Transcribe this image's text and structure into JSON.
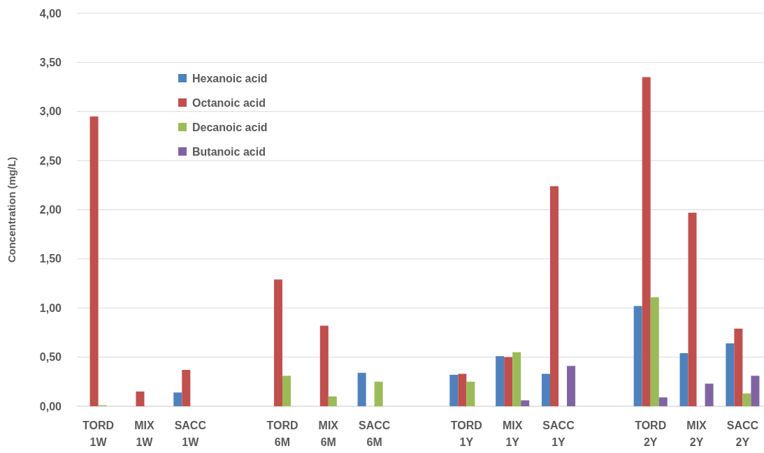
{
  "chart_data": {
    "type": "bar",
    "ylabel": "Concentration (mg/L)",
    "categories": [
      "TORD 1W",
      "MIX 1W",
      "SACC 1W",
      null,
      "TORD 6M",
      "MIX 6M",
      "SACC 6M",
      null,
      "TORD 1Y",
      "MIX 1Y",
      "SACC 1Y",
      null,
      "TORD 2Y",
      "MIX 2Y",
      "SACC 2Y"
    ],
    "series": [
      {
        "name": "Hexanoic acid",
        "color": "#4f81bd",
        "values": [
          0,
          0,
          0.14,
          null,
          0,
          0,
          0.34,
          null,
          0.32,
          0.51,
          0.33,
          null,
          1.02,
          0.54,
          0.64
        ]
      },
      {
        "name": "Octanoic acid",
        "color": "#c0504d",
        "values": [
          2.95,
          0.15,
          0.37,
          null,
          1.29,
          0.82,
          0,
          null,
          0.33,
          0.5,
          2.24,
          null,
          3.35,
          1.97,
          0.79
        ]
      },
      {
        "name": "Decanoic acid",
        "color": "#9bbb59",
        "values": [
          0.01,
          0,
          0,
          null,
          0.31,
          0.1,
          0.25,
          null,
          0.25,
          0.55,
          0,
          null,
          1.11,
          0,
          0.13
        ]
      },
      {
        "name": "Butanoic acid",
        "color": "#8064a2",
        "values": [
          0,
          0,
          0,
          null,
          0,
          0,
          0,
          null,
          0,
          0.06,
          0.41,
          null,
          0.09,
          0.23,
          0.31
        ]
      }
    ],
    "ylim": [
      0,
      4
    ],
    "yticks": [
      {
        "value": 0,
        "label": "0,00"
      },
      {
        "value": 0.5,
        "label": "0,50"
      },
      {
        "value": 1,
        "label": "1,00"
      },
      {
        "value": 1.5,
        "label": "1,50"
      },
      {
        "value": 2,
        "label": "2,00"
      },
      {
        "value": 2.5,
        "label": "2,50"
      },
      {
        "value": 3,
        "label": "3,00"
      },
      {
        "value": 3.5,
        "label": "3,50"
      },
      {
        "value": 4,
        "label": "4,00"
      }
    ],
    "grid": "y",
    "legend": "top left"
  }
}
